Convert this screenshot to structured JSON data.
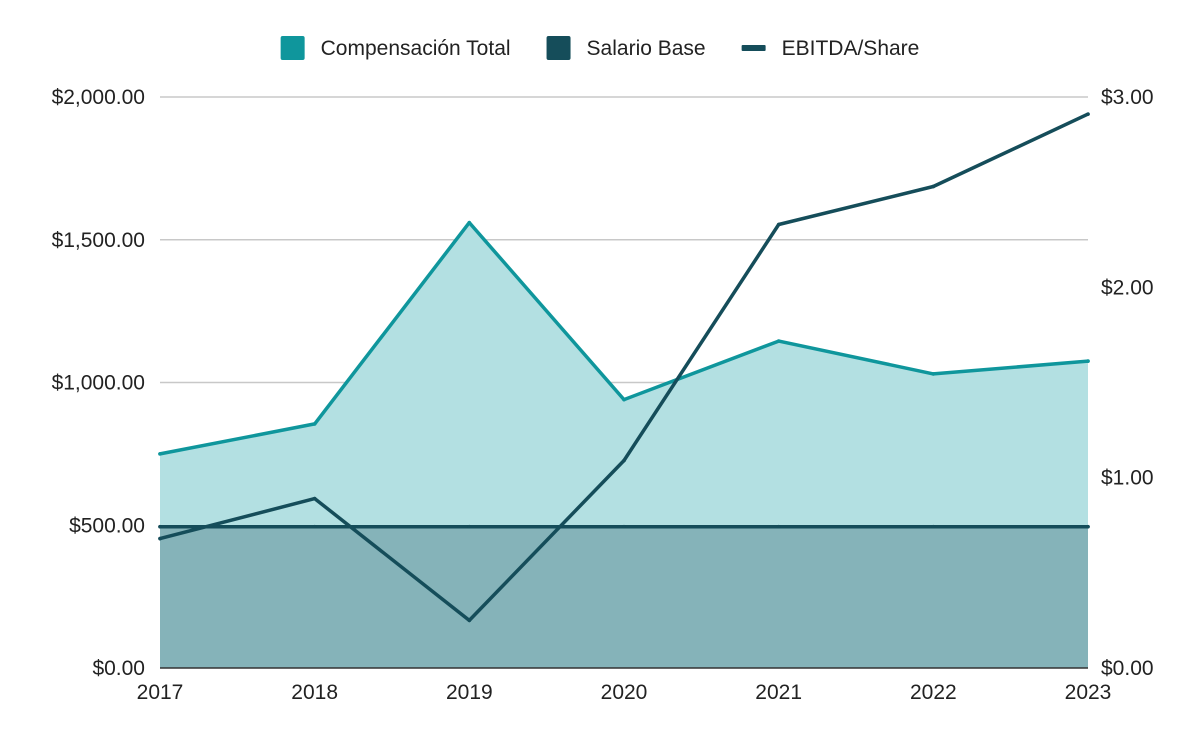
{
  "chart_data": {
    "type": "area",
    "x": [
      "2017",
      "2018",
      "2019",
      "2020",
      "2021",
      "2022",
      "2023"
    ],
    "legend": {
      "placement": "top",
      "entries": [
        {
          "label": "Compensación Total",
          "color": "#0f969c",
          "marker": "square"
        },
        {
          "label": "Salario Base",
          "color": "#154d5a",
          "marker": "square"
        },
        {
          "label": "EBITDA/Share",
          "color": "#154d5a",
          "marker": "line"
        }
      ]
    },
    "series": [
      {
        "name": "Compensación Total",
        "axis": "left",
        "kind": "area",
        "color": "#0f969c",
        "fill": "#b3e0e2",
        "values": [
          750,
          855,
          1560,
          940,
          1145,
          1030,
          1075
        ]
      },
      {
        "name": "Salario Base",
        "axis": "left",
        "kind": "area",
        "color": "#154d5a",
        "fill": "#85b3b9",
        "values": [
          495,
          495,
          495,
          495,
          495,
          495,
          495
        ]
      },
      {
        "name": "EBITDA/Share",
        "axis": "right",
        "kind": "line",
        "color": "#154d5a",
        "values": [
          0.68,
          0.89,
          0.25,
          1.09,
          2.33,
          2.53,
          2.91
        ]
      }
    ],
    "y_left": {
      "min": 0,
      "max": 2000,
      "ticks": [
        0,
        500,
        1000,
        1500,
        2000
      ],
      "tick_labels": [
        "$0.00",
        "$500.00",
        "$1,000.00",
        "$1,500.00",
        "$2,000.00"
      ]
    },
    "y_right": {
      "min": 0,
      "max": 3,
      "ticks": [
        0,
        1,
        2,
        3
      ],
      "tick_labels": [
        "$0.00",
        "$1.00",
        "$2.00",
        "$3.00"
      ]
    },
    "grid": true,
    "title": "",
    "xlabel": "",
    "ylabel": ""
  }
}
